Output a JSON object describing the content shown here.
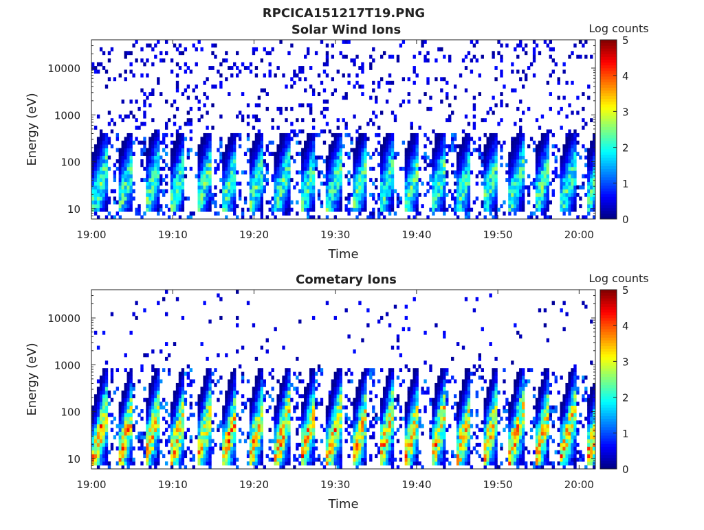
{
  "figure_title": "RPCICA151217T19.PNG",
  "colors": {
    "axis": "#222222",
    "background": "#ffffff"
  },
  "colorbar": {
    "label": "Log counts",
    "range": [
      0,
      5
    ],
    "ticks": [
      "0",
      "1",
      "2",
      "3",
      "4",
      "5"
    ],
    "colormap": "jet"
  },
  "chart_data": [
    {
      "type": "heatmap",
      "title": "Solar Wind Ions",
      "xlabel": "Time",
      "ylabel": "Energy (eV)",
      "x_ticks": [
        "19:00",
        "19:10",
        "19:20",
        "19:30",
        "19:40",
        "19:50",
        "20:00"
      ],
      "y_ticks": [
        "10",
        "100",
        "1000",
        "10000"
      ],
      "yscale": "log",
      "xlim": [
        "19:00",
        "20:02"
      ],
      "ylim": [
        6,
        40000
      ],
      "z_range": [
        0,
        5
      ],
      "sweep_period_min": 3.2,
      "core_energy_range_eV": [
        10,
        350
      ],
      "peak_log_counts": 2.5,
      "background_log_counts": 0.3
    },
    {
      "type": "heatmap",
      "title": "Cometary Ions",
      "xlabel": "Time",
      "ylabel": "Energy (eV)",
      "x_ticks": [
        "19:00",
        "19:10",
        "19:20",
        "19:30",
        "19:40",
        "19:50",
        "20:00"
      ],
      "y_ticks": [
        "10",
        "100",
        "1000",
        "10000"
      ],
      "yscale": "log",
      "xlim": [
        "19:00",
        "20:02"
      ],
      "ylim": [
        6,
        40000
      ],
      "z_range": [
        0,
        5
      ],
      "sweep_period_min": 3.2,
      "core_energy_range_eV": [
        8,
        800
      ],
      "peak_log_counts": 3.5,
      "background_log_counts": 0.2
    }
  ]
}
